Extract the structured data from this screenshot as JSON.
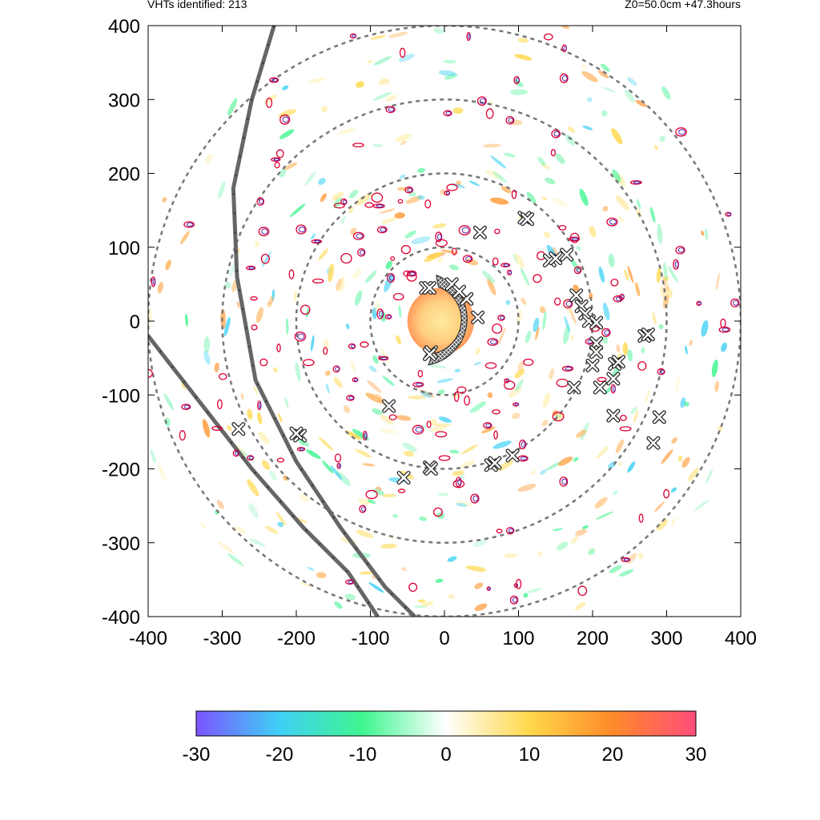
{
  "header": {
    "left": "VHTs identified: 213",
    "right": "Z0=50.0cm  +47.3hours"
  },
  "chart_data": {
    "type": "scatter",
    "xlim": [
      -400,
      400
    ],
    "ylim": [
      -400,
      400
    ],
    "xticks": [
      "-400",
      "-300",
      "-200",
      "-100",
      "0",
      "100",
      "200",
      "300",
      "400"
    ],
    "yticks": [
      "400",
      "300",
      "200",
      "100",
      "0",
      "-100",
      "-200",
      "-300",
      "-400"
    ],
    "range_rings": [
      100,
      200,
      300,
      400
    ],
    "tracks": [
      {
        "points": [
          [
            -230,
            400
          ],
          [
            -260,
            300
          ],
          [
            -285,
            180
          ],
          [
            -280,
            60
          ],
          [
            -255,
            -80
          ],
          [
            -200,
            -190
          ],
          [
            -140,
            -280
          ],
          [
            -80,
            -360
          ],
          [
            -40,
            -400
          ]
        ]
      },
      {
        "points": [
          [
            -400,
            -20
          ],
          [
            -330,
            -110
          ],
          [
            -260,
            -200
          ],
          [
            -190,
            -280
          ],
          [
            -130,
            -340
          ],
          [
            -90,
            -400
          ]
        ]
      }
    ],
    "vht_markers": [
      [
        -25,
        45
      ],
      [
        -20,
        45
      ],
      [
        -18,
        -42
      ],
      [
        -20,
        -45
      ],
      [
        48,
        120
      ],
      [
        108,
        140
      ],
      [
        112,
        138
      ],
      [
        142,
        82
      ],
      [
        150,
        85
      ],
      [
        165,
        90
      ],
      [
        178,
        35
      ],
      [
        185,
        20
      ],
      [
        190,
        10
      ],
      [
        195,
        0
      ],
      [
        205,
        -2
      ],
      [
        205,
        -30
      ],
      [
        205,
        -42
      ],
      [
        200,
        -60
      ],
      [
        210,
        -90
      ],
      [
        175,
        -90
      ],
      [
        228,
        -78
      ],
      [
        230,
        -58
      ],
      [
        235,
        -55
      ],
      [
        270,
        -20
      ],
      [
        275,
        -18
      ],
      [
        290,
        -130
      ],
      [
        282,
        -165
      ],
      [
        228,
        -128
      ],
      [
        -75,
        -115
      ],
      [
        -55,
        -212
      ],
      [
        -20,
        -198
      ],
      [
        -18,
        -200
      ],
      [
        63,
        -195
      ],
      [
        68,
        -192
      ],
      [
        92,
        -182
      ],
      [
        -195,
        -155
      ],
      [
        -200,
        -152
      ],
      [
        -278,
        -146
      ],
      [
        30,
        30
      ],
      [
        45,
        5
      ],
      [
        10,
        50
      ],
      [
        20,
        40
      ]
    ],
    "eyewall": {
      "center": [
        0,
        0
      ],
      "radius": 55,
      "start_deg": -110,
      "end_deg": 100
    },
    "colorbar": {
      "min": -30,
      "max": 30,
      "ticks": [
        "-30",
        "-20",
        "-10",
        "0",
        "10",
        "20",
        "30"
      ],
      "colors": [
        "#7b54ff",
        "#3fd0f5",
        "#40f590",
        "#ffffff",
        "#ffd84a",
        "#ff8a2a",
        "#ff4d7a"
      ]
    }
  }
}
